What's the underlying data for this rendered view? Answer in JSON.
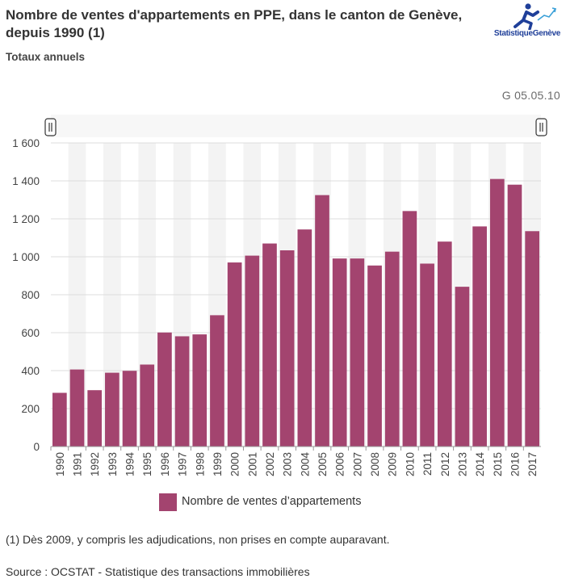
{
  "header": {
    "title": "Nombre de ventes d'appartements en PPE, dans le canton de Genève, depuis 1990 (1)",
    "subtitle": "Totaux annuels",
    "code": "G 05.05.10",
    "logo_label": "StatistiqueGenève"
  },
  "legend": {
    "label": "Nombre de ventes d’appartements"
  },
  "footer": {
    "note": "(1) Dès 2009, y compris les adjudications, non prises en compte auparavant.",
    "source": "Source : OCSTAT - Statistique des transactions immobilières"
  },
  "colors": {
    "bar": "#a3446f",
    "logo": "#1f3f99",
    "grid": "#dcdcdc",
    "band": "#f3f3f3"
  },
  "chart_data": {
    "type": "bar",
    "title": "Nombre de ventes d'appartements en PPE, dans le canton de Genève, depuis 1990 (1)",
    "xlabel": "",
    "ylabel": "",
    "ylim": [
      0,
      1600
    ],
    "yticks": [
      0,
      200,
      400,
      600,
      800,
      1000,
      1200,
      1400,
      1600
    ],
    "ytick_labels": [
      "0",
      "200",
      "400",
      "600",
      "800",
      "1 000",
      "1 200",
      "1 400",
      "1 600"
    ],
    "categories": [
      "1990",
      "1991",
      "1992",
      "1993",
      "1994",
      "1995",
      "1996",
      "1997",
      "1998",
      "1999",
      "2000",
      "2001",
      "2002",
      "2003",
      "2004",
      "2005",
      "2006",
      "2007",
      "2008",
      "2009",
      "2010",
      "2011",
      "2012",
      "2013",
      "2014",
      "2015",
      "2016",
      "2017"
    ],
    "series": [
      {
        "name": "Nombre de ventes d’appartements",
        "values": [
          283,
          406,
          297,
          389,
          399,
          432,
          601,
          581,
          591,
          692,
          970,
          1006,
          1070,
          1034,
          1144,
          1325,
          991,
          991,
          954,
          1027,
          1241,
          964,
          1080,
          842,
          1160,
          1410,
          1380,
          1135
        ]
      }
    ],
    "legend_position": "bottom",
    "grid": true
  }
}
